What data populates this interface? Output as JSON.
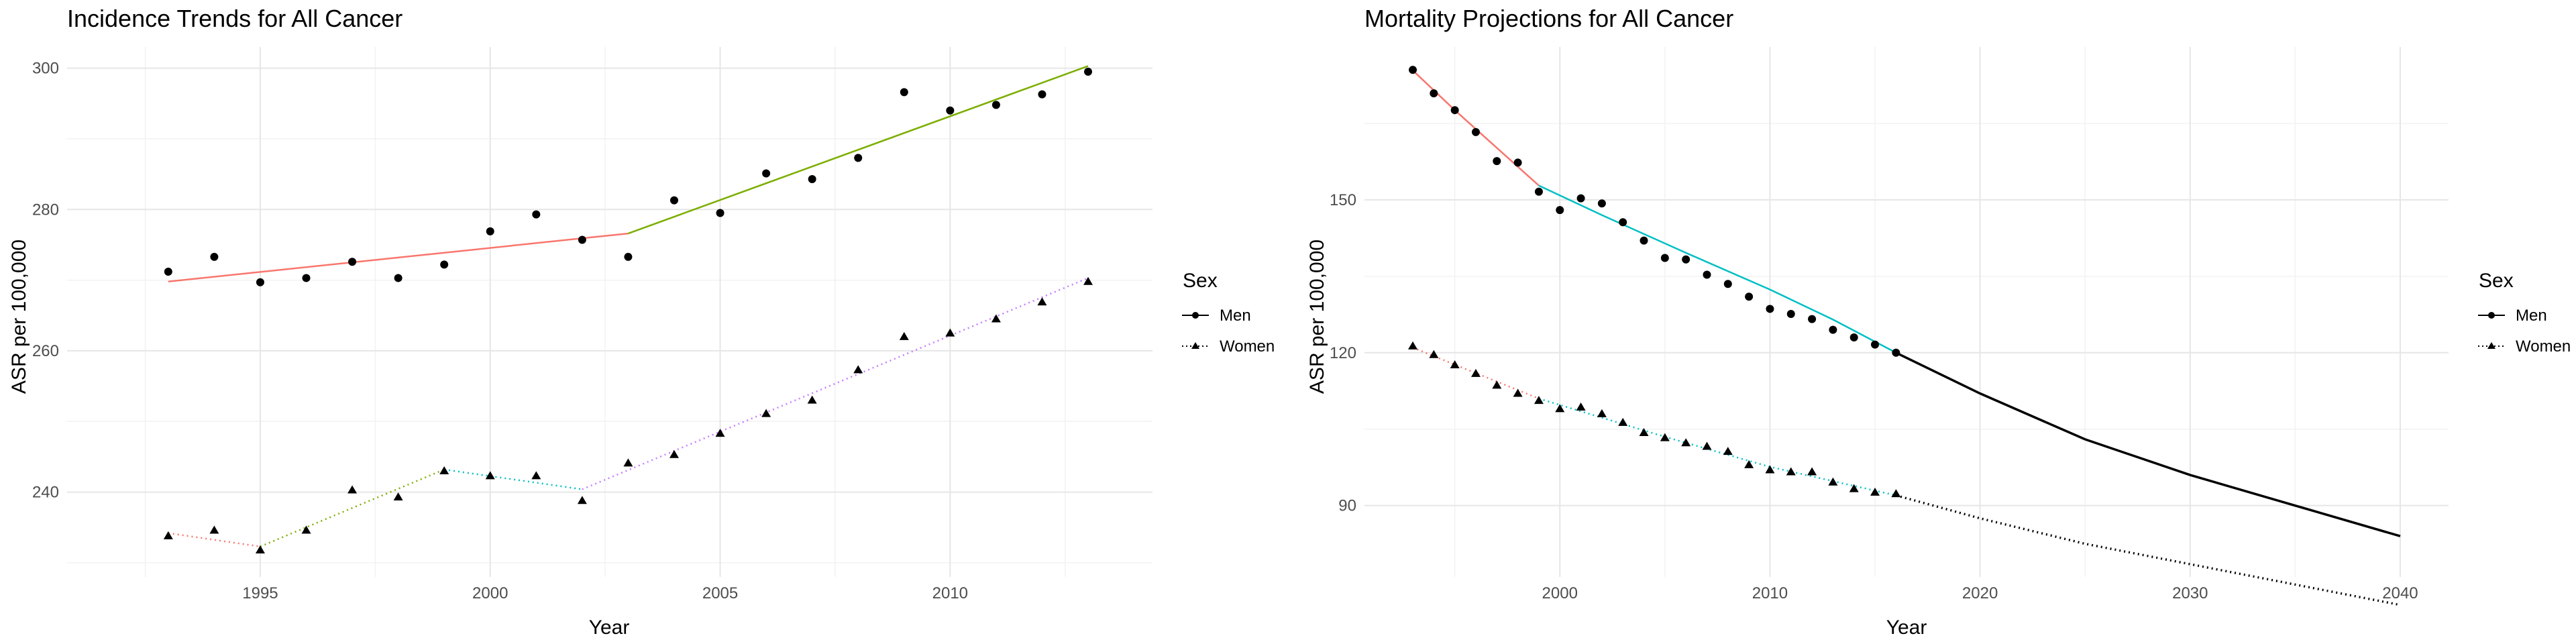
{
  "chart_data": [
    {
      "type": "scatter",
      "title": "Incidence Trends for All Cancer",
      "xlabel": "Year",
      "ylabel": "ASR per 100,000",
      "xlim": [
        1990.8,
        2014.4
      ],
      "ylim": [
        228,
        303
      ],
      "x_ticks": [
        1995,
        2000,
        2005,
        2010
      ],
      "y_ticks": [
        240,
        260,
        280,
        300
      ],
      "grid": true,
      "legend": {
        "title": "Sex",
        "position": "right",
        "entries": [
          {
            "label": "Men",
            "marker": "circle",
            "line": "solid"
          },
          {
            "label": "Women",
            "marker": "triangle",
            "line": "dotted"
          }
        ]
      },
      "series": [
        {
          "name": "Men",
          "marker": "circle",
          "x": [
            1993,
            1994,
            1995,
            1996,
            1997,
            1998,
            1999,
            2000,
            2001,
            2002,
            2003,
            2004,
            2005,
            2006,
            2007,
            2008,
            2009,
            2010,
            2011,
            2012,
            2013
          ],
          "values": [
            271.2,
            273.3,
            269.7,
            270.3,
            272.6,
            270.3,
            272.2,
            276.9,
            279.3,
            275.7,
            273.3,
            281.3,
            279.5,
            285.1,
            284.3,
            287.3,
            296.6,
            294.0,
            294.8,
            296.3,
            299.5
          ]
        },
        {
          "name": "Women",
          "marker": "triangle",
          "x": [
            1993,
            1994,
            1995,
            1996,
            1997,
            1998,
            1999,
            2000,
            2001,
            2002,
            2003,
            2004,
            2005,
            2006,
            2007,
            2008,
            2009,
            2010,
            2011,
            2012,
            2013
          ],
          "values": [
            233.8,
            234.6,
            231.8,
            234.6,
            240.3,
            239.3,
            243.0,
            242.3,
            242.3,
            238.8,
            244.1,
            245.3,
            248.3,
            251.1,
            253.0,
            257.3,
            262.0,
            262.5,
            264.5,
            266.9,
            269.8
          ]
        }
      ],
      "trend_segments": [
        {
          "series": "Men",
          "color": "#F8766D",
          "style": "solid",
          "x": [
            1993,
            2003
          ],
          "values": [
            269.8,
            276.6
          ]
        },
        {
          "series": "Men",
          "color": "#7CAE00",
          "style": "solid",
          "x": [
            2003,
            2013
          ],
          "values": [
            276.6,
            300.3
          ]
        },
        {
          "series": "Women",
          "color": "#F8766D",
          "style": "dotted",
          "x": [
            1993,
            1995
          ],
          "values": [
            234.2,
            232.3
          ]
        },
        {
          "series": "Women",
          "color": "#7CAE00",
          "style": "dotted",
          "x": [
            1995,
            1999
          ],
          "values": [
            232.3,
            243.2
          ]
        },
        {
          "series": "Women",
          "color": "#00BFC4",
          "style": "dotted",
          "x": [
            1999,
            2002
          ],
          "values": [
            243.2,
            240.4
          ]
        },
        {
          "series": "Women",
          "color": "#C77CFF",
          "style": "dotted",
          "x": [
            2002,
            2013
          ],
          "values": [
            240.4,
            270.3
          ]
        }
      ]
    },
    {
      "type": "line",
      "title": "Mortality Projections for All Cancer",
      "xlabel": "Year",
      "ylabel": "ASR per 100,000",
      "xlim": [
        1990.7,
        2042.3
      ],
      "ylim": [
        76,
        180
      ],
      "x_ticks": [
        2000,
        2010,
        2020,
        2030,
        2040
      ],
      "y_ticks": [
        90,
        120,
        150
      ],
      "grid": true,
      "legend": {
        "title": "Sex",
        "position": "right",
        "entries": [
          {
            "label": "Men",
            "marker": "circle",
            "line": "solid"
          },
          {
            "label": "Women",
            "marker": "triangle",
            "line": "dotted"
          }
        ]
      },
      "series": [
        {
          "name": "Men",
          "marker": "circle",
          "x": [
            1993,
            1994,
            1995,
            1996,
            1997,
            1998,
            1999,
            2000,
            2001,
            2002,
            2003,
            2004,
            2005,
            2006,
            2007,
            2008,
            2009,
            2010,
            2011,
            2012,
            2013,
            2014,
            2015,
            2016
          ],
          "values": [
            175.5,
            170.9,
            167.6,
            163.3,
            157.6,
            157.3,
            151.6,
            148.0,
            150.3,
            149.3,
            145.6,
            142.0,
            138.6,
            138.3,
            135.3,
            133.5,
            131.0,
            128.6,
            127.6,
            126.6,
            124.5,
            123.0,
            121.6,
            120.0
          ]
        },
        {
          "name": "Women",
          "marker": "triangle",
          "x": [
            1993,
            1994,
            1995,
            1996,
            1997,
            1998,
            1999,
            2000,
            2001,
            2002,
            2003,
            2004,
            2005,
            2006,
            2007,
            2008,
            2009,
            2010,
            2011,
            2012,
            2013,
            2014,
            2015,
            2016
          ],
          "values": [
            121.3,
            119.6,
            117.6,
            115.9,
            113.6,
            112.0,
            110.6,
            109.0,
            109.3,
            108.0,
            106.3,
            104.3,
            103.3,
            102.3,
            101.6,
            100.6,
            98.0,
            97.0,
            96.6,
            96.6,
            94.6,
            93.3,
            92.6,
            92.3
          ]
        }
      ],
      "trend_segments": [
        {
          "series": "Men",
          "color": "#F8766D",
          "style": "solid",
          "x": [
            1993,
            1995,
            1997,
            1999
          ],
          "values": [
            175.4,
            167.6,
            160.2,
            152.8
          ]
        },
        {
          "series": "Men",
          "color": "#00BFC4",
          "style": "solid",
          "x": [
            1999,
            2002,
            2006,
            2010,
            2013,
            2016
          ],
          "values": [
            152.8,
            147.0,
            139.6,
            132.4,
            126.5,
            120.0
          ]
        },
        {
          "series": "Women",
          "color": "#F8766D",
          "style": "dotted",
          "x": [
            1993,
            1996,
            1999
          ],
          "values": [
            121.0,
            116.0,
            111.0
          ]
        },
        {
          "series": "Women",
          "color": "#00BFC4",
          "style": "dotted",
          "x": [
            1999,
            2005,
            2010,
            2016
          ],
          "values": [
            111.0,
            103.5,
            97.6,
            92.0
          ]
        }
      ],
      "projections": [
        {
          "series": "Men",
          "color": "#000000",
          "style": "solid",
          "x": [
            2016,
            2020,
            2025,
            2030,
            2035,
            2040
          ],
          "values": [
            120.0,
            112.0,
            103.0,
            96.0,
            90.0,
            84.0
          ]
        },
        {
          "series": "Women",
          "color": "#000000",
          "style": "dotted",
          "x": [
            2016,
            2020,
            2025,
            2030,
            2035,
            2040
          ],
          "values": [
            92.0,
            87.5,
            82.5,
            78.5,
            74.5,
            70.5
          ]
        }
      ]
    }
  ]
}
